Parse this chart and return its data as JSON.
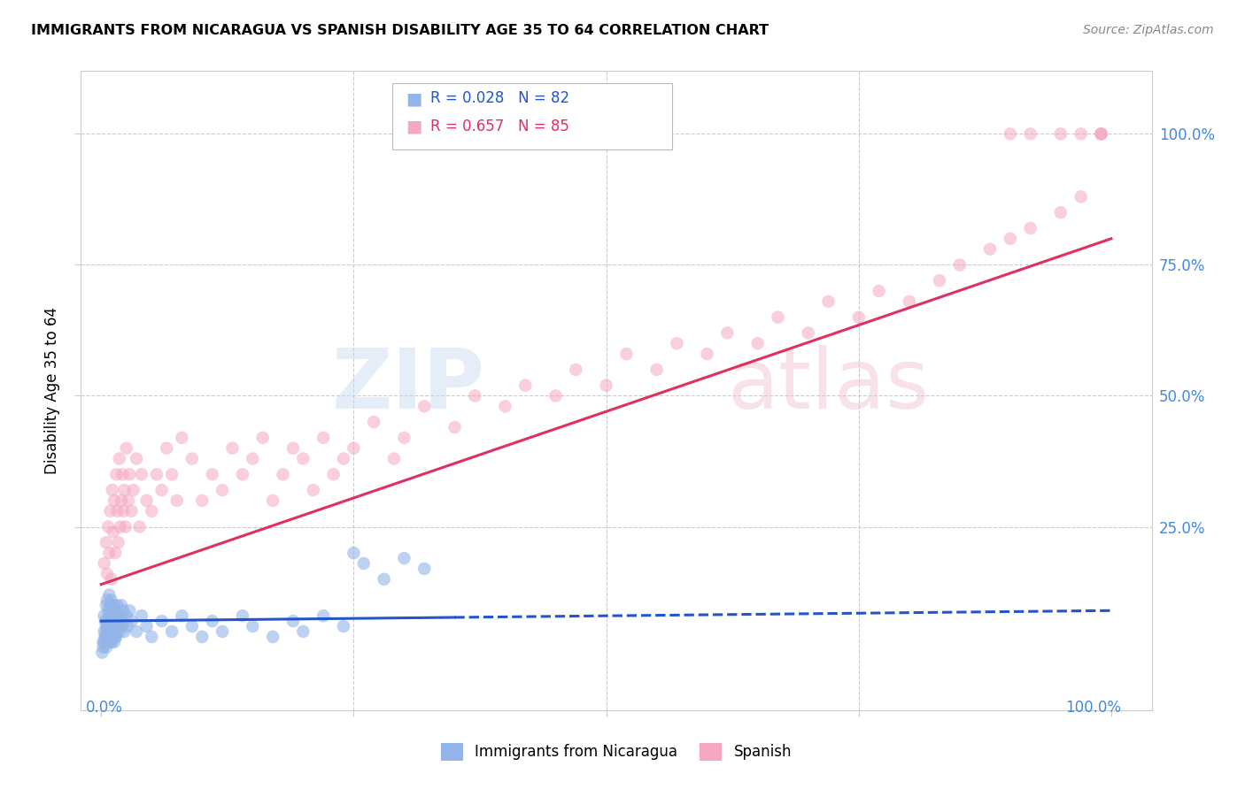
{
  "title": "IMMIGRANTS FROM NICARAGUA VS SPANISH DISABILITY AGE 35 TO 64 CORRELATION CHART",
  "source": "Source: ZipAtlas.com",
  "ylabel": "Disability Age 35 to 64",
  "legend_label1": "Immigrants from Nicaragua",
  "legend_label2": "Spanish",
  "watermark_zip": "ZIP",
  "watermark_atlas": "atlas",
  "blue_color": "#92b4e8",
  "pink_color": "#f5a8c0",
  "blue_line_color": "#2255cc",
  "pink_line_color": "#e03060",
  "grid_color": "#cccccc",
  "tick_color": "#4488dd",
  "blue_scatter_x": [
    0.2,
    0.3,
    0.3,
    0.4,
    0.4,
    0.5,
    0.5,
    0.5,
    0.6,
    0.6,
    0.6,
    0.7,
    0.7,
    0.8,
    0.8,
    0.8,
    0.9,
    0.9,
    1.0,
    1.0,
    1.0,
    1.1,
    1.1,
    1.2,
    1.2,
    1.3,
    1.3,
    1.4,
    1.4,
    1.5,
    1.5,
    1.6,
    1.6,
    1.7,
    1.8,
    1.9,
    2.0,
    2.0,
    2.1,
    2.2,
    2.3,
    2.5,
    2.6,
    2.8,
    3.0,
    3.5,
    4.0,
    4.5,
    5.0,
    6.0,
    7.0,
    8.0,
    9.0,
    10.0,
    11.0,
    12.0,
    14.0,
    15.0,
    17.0,
    19.0,
    20.0,
    22.0,
    24.0,
    25.0,
    26.0,
    28.0,
    30.0,
    32.0,
    0.1,
    0.2,
    0.3,
    0.4,
    0.5,
    0.6,
    0.7,
    0.8,
    0.9,
    1.0,
    1.1,
    1.2,
    1.3,
    1.4
  ],
  "blue_scatter_y": [
    3.0,
    5.0,
    8.0,
    4.0,
    7.0,
    2.0,
    6.0,
    10.0,
    3.0,
    7.0,
    11.0,
    5.0,
    9.0,
    4.0,
    8.0,
    12.0,
    6.0,
    10.0,
    3.0,
    7.0,
    11.0,
    5.0,
    9.0,
    4.0,
    8.0,
    6.0,
    10.0,
    5.0,
    9.0,
    4.0,
    8.0,
    6.0,
    10.0,
    7.0,
    5.0,
    8.0,
    6.0,
    10.0,
    7.0,
    9.0,
    5.0,
    8.0,
    6.0,
    9.0,
    7.0,
    5.0,
    8.0,
    6.0,
    4.0,
    7.0,
    5.0,
    8.0,
    6.0,
    4.0,
    7.0,
    5.0,
    8.0,
    6.0,
    4.0,
    7.0,
    5.0,
    8.0,
    6.0,
    20.0,
    18.0,
    15.0,
    19.0,
    17.0,
    1.0,
    2.0,
    3.0,
    4.0,
    5.0,
    6.0,
    3.0,
    4.0,
    5.0,
    3.0,
    4.0,
    5.0,
    3.0,
    4.0
  ],
  "pink_scatter_x": [
    0.3,
    0.5,
    0.6,
    0.7,
    0.8,
    0.9,
    1.0,
    1.1,
    1.2,
    1.3,
    1.4,
    1.5,
    1.6,
    1.7,
    1.8,
    1.9,
    2.0,
    2.1,
    2.2,
    2.3,
    2.4,
    2.5,
    2.7,
    2.8,
    3.0,
    3.2,
    3.5,
    3.8,
    4.0,
    4.5,
    5.0,
    5.5,
    6.0,
    6.5,
    7.0,
    7.5,
    8.0,
    9.0,
    10.0,
    11.0,
    12.0,
    13.0,
    14.0,
    15.0,
    16.0,
    17.0,
    18.0,
    19.0,
    20.0,
    21.0,
    22.0,
    23.0,
    24.0,
    25.0,
    27.0,
    29.0,
    30.0,
    32.0,
    35.0,
    37.0,
    40.0,
    42.0,
    45.0,
    47.0,
    50.0,
    52.0,
    55.0,
    57.0,
    60.0,
    62.0,
    65.0,
    67.0,
    70.0,
    72.0,
    75.0,
    77.0,
    80.0,
    83.0,
    85.0,
    88.0,
    90.0,
    92.0,
    95.0,
    97.0,
    99.0
  ],
  "pink_scatter_y": [
    18.0,
    22.0,
    16.0,
    25.0,
    20.0,
    28.0,
    15.0,
    32.0,
    24.0,
    30.0,
    20.0,
    35.0,
    28.0,
    22.0,
    38.0,
    25.0,
    30.0,
    35.0,
    28.0,
    32.0,
    25.0,
    40.0,
    30.0,
    35.0,
    28.0,
    32.0,
    38.0,
    25.0,
    35.0,
    30.0,
    28.0,
    35.0,
    32.0,
    40.0,
    35.0,
    30.0,
    42.0,
    38.0,
    30.0,
    35.0,
    32.0,
    40.0,
    35.0,
    38.0,
    42.0,
    30.0,
    35.0,
    40.0,
    38.0,
    32.0,
    42.0,
    35.0,
    38.0,
    40.0,
    45.0,
    38.0,
    42.0,
    48.0,
    44.0,
    50.0,
    48.0,
    52.0,
    50.0,
    55.0,
    52.0,
    58.0,
    55.0,
    60.0,
    58.0,
    62.0,
    60.0,
    65.0,
    62.0,
    68.0,
    65.0,
    70.0,
    68.0,
    72.0,
    75.0,
    78.0,
    80.0,
    82.0,
    85.0,
    88.0,
    100.0
  ],
  "pink_extra_x": [
    90.0,
    92.0,
    95.0,
    97.0,
    99.0,
    99.0
  ],
  "pink_extra_y": [
    100.0,
    100.0,
    100.0,
    100.0,
    100.0,
    100.0
  ],
  "blue_line_x": [
    0.0,
    100.0
  ],
  "blue_line_y": [
    7.0,
    9.0
  ],
  "pink_line_x": [
    0.0,
    100.0
  ],
  "pink_line_y": [
    14.0,
    80.0
  ],
  "xlim": [
    -2,
    104
  ],
  "ylim": [
    -10,
    112
  ],
  "ytick_positions": [
    25,
    50,
    75,
    100
  ],
  "ytick_labels": [
    "25.0%",
    "50.0%",
    "75.0%",
    "100.0%"
  ]
}
